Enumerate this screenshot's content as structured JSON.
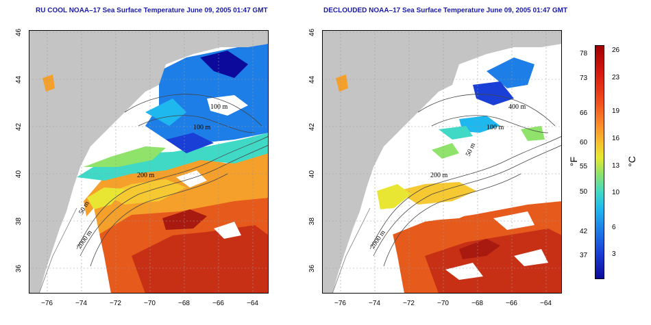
{
  "left_map": {
    "title": "RU COOL NOAA–17 Sea Surface Temperature June 09, 2005 01:47 GMT",
    "contours": [
      "100 m",
      "100 m",
      "200 m",
      "50 m",
      "2000 m"
    ]
  },
  "right_map": {
    "title": "DECLOUDED NOAA–17 Sea Surface Temperature June 09, 2005 01:47 GMT",
    "contours": [
      "400 m",
      "100 m",
      "50 m",
      "200 m",
      "2000 m"
    ]
  },
  "axes": {
    "x_ticks": [
      "−76",
      "−74",
      "−72",
      "−70",
      "−68",
      "−66",
      "−64"
    ],
    "y_ticks": [
      "46",
      "44",
      "42",
      "40",
      "38",
      "36"
    ]
  },
  "colorbar": {
    "fahrenheit_ticks": [
      "78",
      "73",
      "66",
      "60",
      "55",
      "50",
      "42",
      "37"
    ],
    "celsius_ticks": [
      "26",
      "23",
      "19",
      "16",
      "13",
      "10",
      "6",
      "3"
    ],
    "f_unit": "°F",
    "c_unit": "°C",
    "colors": [
      "#a00000",
      "#d81a10",
      "#f04d1c",
      "#fb8c2a",
      "#f5c22e",
      "#e6e830",
      "#8fe26a",
      "#3fd9c6",
      "#1eb8ee",
      "#1d7ee8",
      "#1a3fd6",
      "#0b0a9a"
    ]
  },
  "land_color": "#c4c4c4"
}
